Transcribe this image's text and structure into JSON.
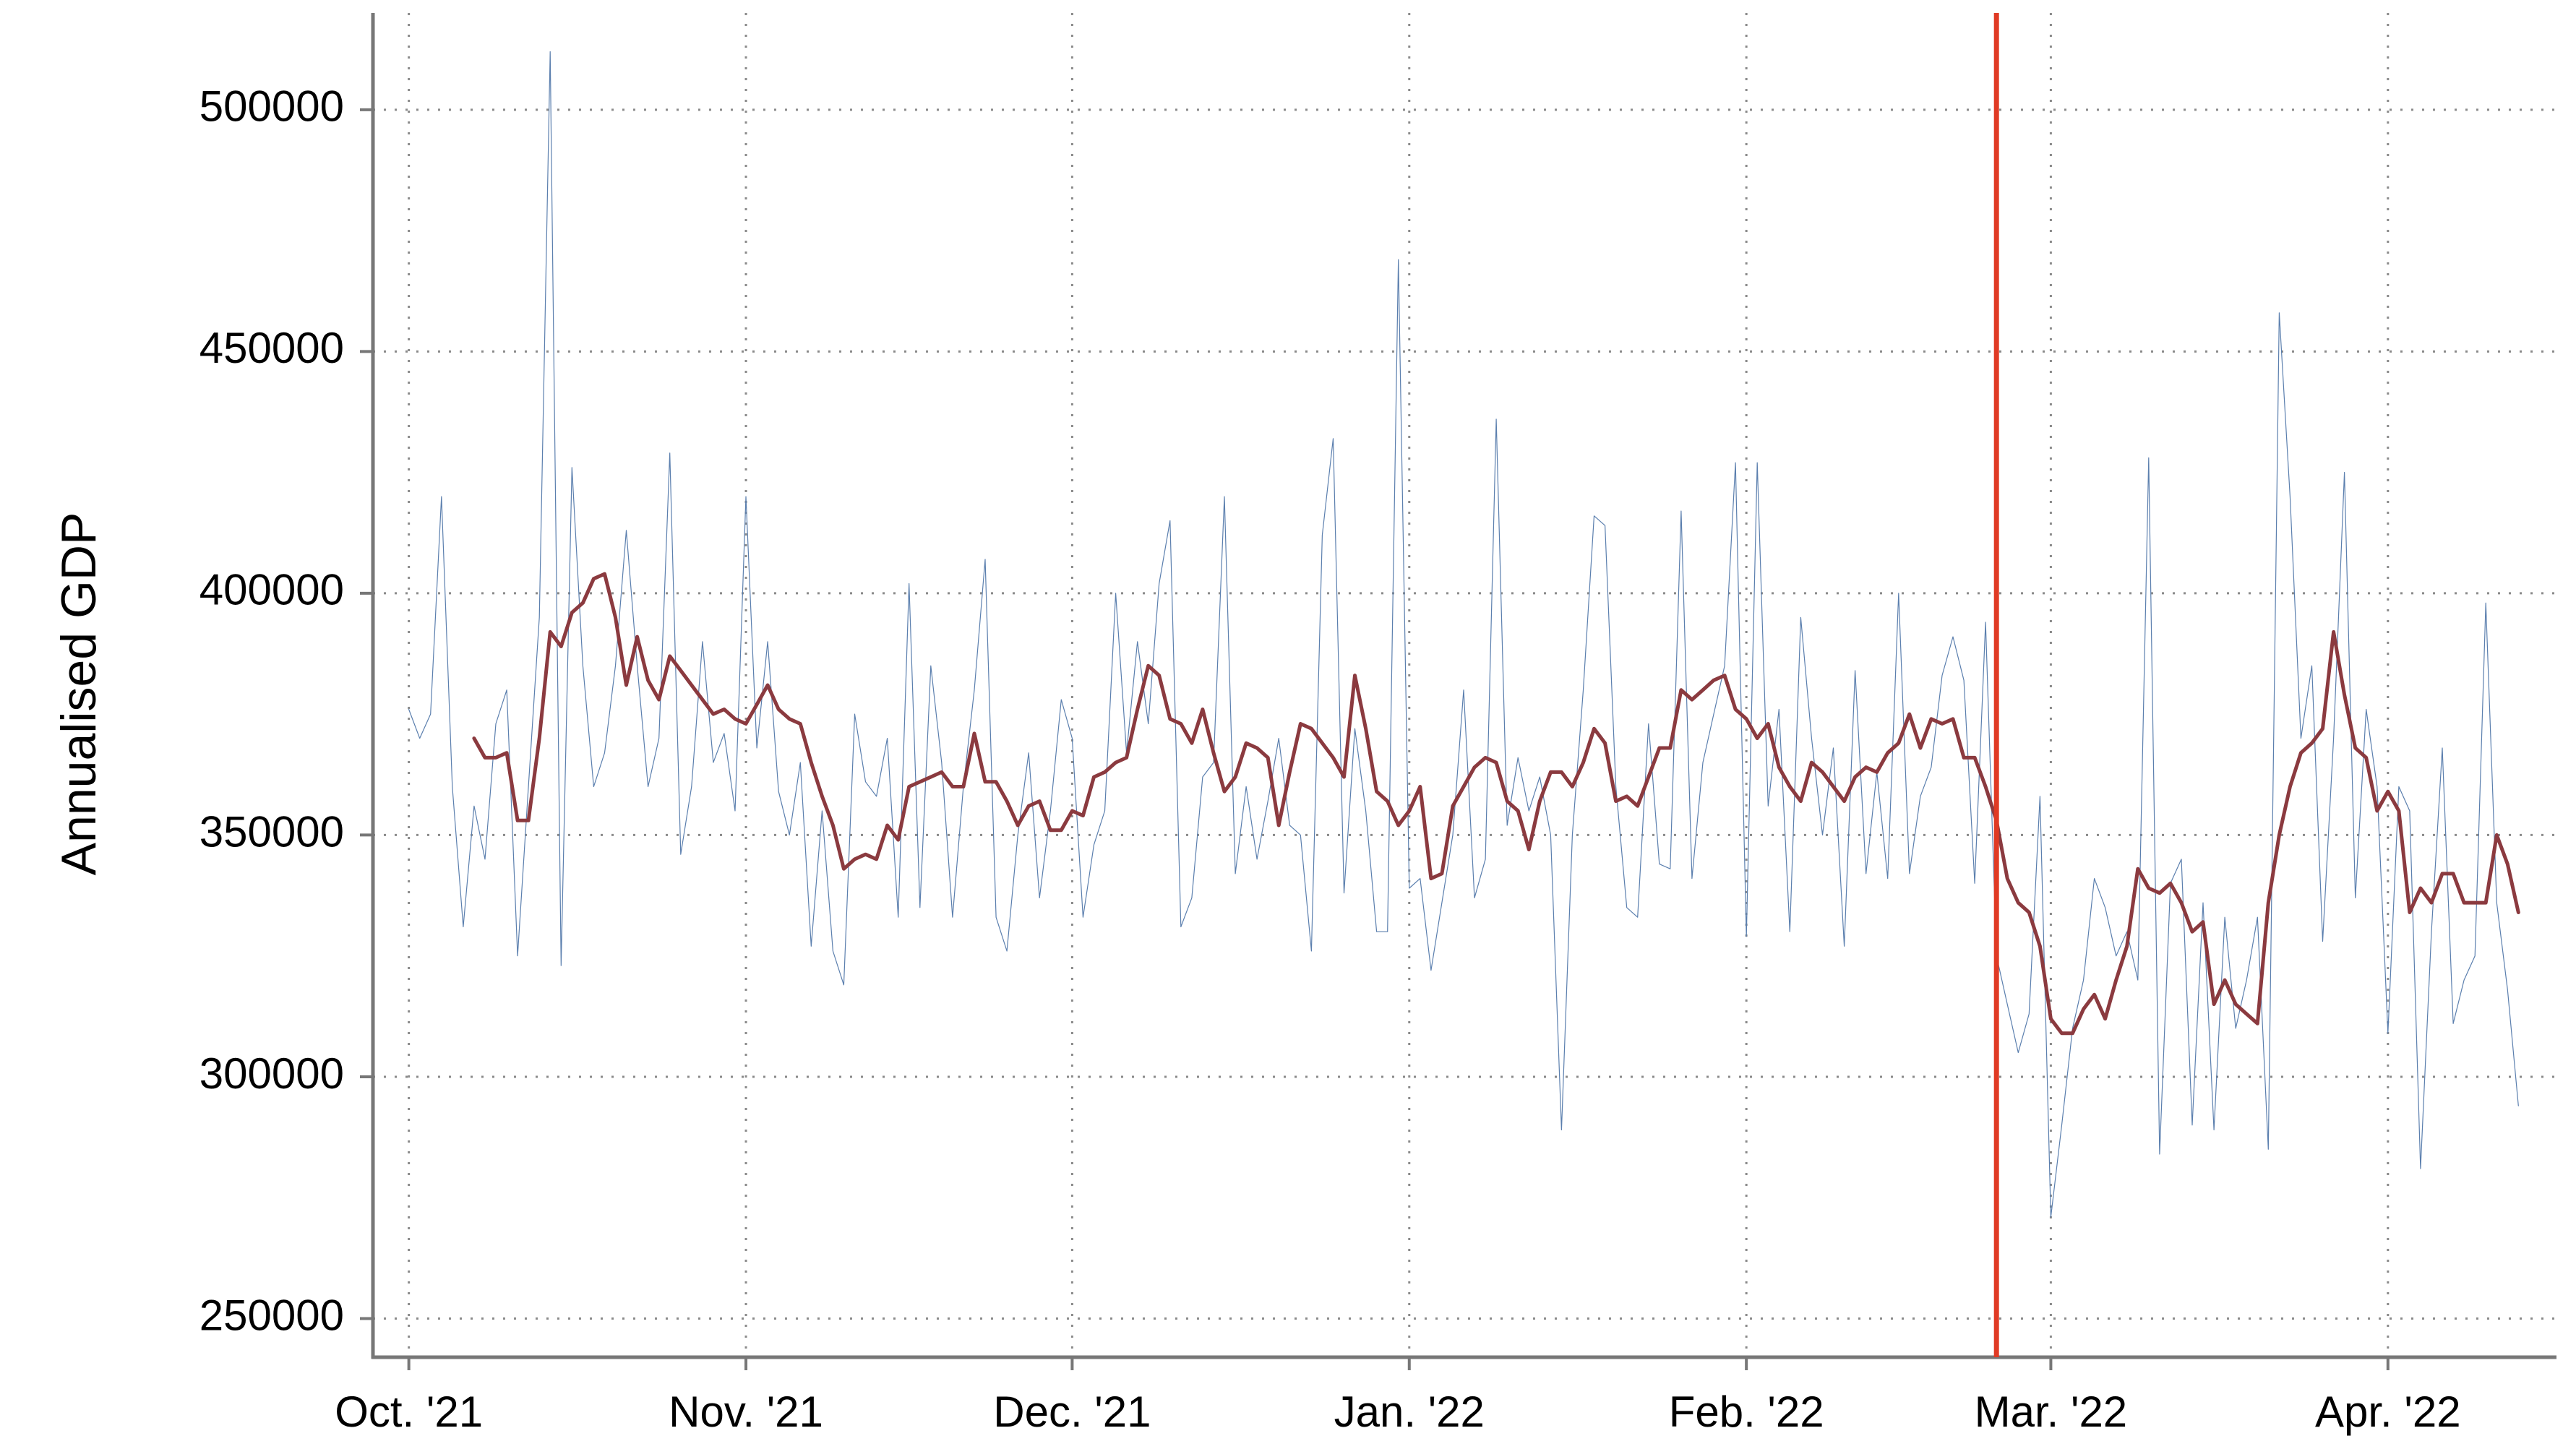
{
  "chart_data": {
    "type": "line",
    "y_label": "Annualised GDP",
    "x": [
      0,
      1,
      2,
      3,
      4,
      5,
      6,
      7,
      8,
      9,
      10,
      11,
      12,
      13,
      14,
      15,
      16,
      17,
      18,
      19,
      20,
      21,
      22,
      23,
      24,
      25,
      26,
      27,
      28,
      29,
      30,
      31,
      32,
      33,
      34,
      35,
      36,
      37,
      38,
      39,
      40,
      41,
      42,
      43,
      44,
      45,
      46,
      47,
      48,
      49,
      50,
      51,
      52,
      53,
      54,
      55,
      56,
      57,
      58,
      59,
      60,
      61,
      62,
      63,
      64,
      65,
      66,
      67,
      68,
      69,
      70,
      71,
      72,
      73,
      74,
      75,
      76,
      77,
      78,
      79,
      80,
      81,
      82,
      83,
      84,
      85,
      86,
      87,
      88,
      89,
      90,
      91,
      92,
      93,
      94,
      95,
      96,
      97,
      98,
      99,
      100,
      101,
      102,
      103,
      104,
      105,
      106,
      107,
      108,
      109,
      110,
      111,
      112,
      113,
      114,
      115,
      116,
      117,
      118,
      119,
      120,
      121,
      122,
      123,
      124,
      125,
      126,
      127,
      128,
      129,
      130,
      131,
      132,
      133,
      134,
      135,
      136,
      137,
      138,
      139,
      140,
      141,
      142,
      143,
      144,
      145,
      146,
      147,
      148,
      149,
      150,
      151,
      152,
      153,
      154,
      155,
      156,
      157,
      158,
      159,
      160,
      161,
      162,
      163,
      164,
      165,
      166,
      167,
      168,
      169,
      170,
      171,
      172,
      173,
      174,
      175,
      176,
      177,
      178,
      179,
      180,
      181,
      182,
      183,
      184,
      185,
      186,
      187,
      188,
      189,
      190,
      191,
      192,
      193,
      194
    ],
    "series": [
      {
        "color": "#5b7fae",
        "width": 1.2,
        "values": [
          376000,
          370000,
          375000,
          420000,
          360000,
          331000,
          356000,
          345000,
          373000,
          380000,
          325000,
          360000,
          395000,
          512000,
          323000,
          426000,
          385000,
          360000,
          367000,
          385000,
          413000,
          385000,
          360000,
          370000,
          429000,
          346000,
          360000,
          390000,
          365000,
          371000,
          355000,
          420000,
          368000,
          390000,
          359000,
          350000,
          365000,
          327000,
          355000,
          326000,
          319000,
          375000,
          361000,
          358000,
          370000,
          333000,
          402000,
          335000,
          385000,
          365000,
          333000,
          360000,
          380000,
          407000,
          333000,
          326000,
          350000,
          367000,
          337000,
          355000,
          378000,
          370000,
          333000,
          348000,
          355000,
          400000,
          367000,
          390000,
          373000,
          402000,
          415000,
          331000,
          337000,
          362000,
          365000,
          420000,
          342000,
          360000,
          345000,
          357000,
          370000,
          352000,
          350000,
          326000,
          412000,
          432000,
          338000,
          372000,
          355000,
          330000,
          330000,
          469000,
          339000,
          341000,
          322000,
          336000,
          350000,
          380000,
          337000,
          345000,
          436000,
          352000,
          366000,
          355000,
          362000,
          350000,
          289000,
          350000,
          380000,
          416000,
          414000,
          360000,
          335000,
          333000,
          373000,
          344000,
          343000,
          417000,
          341000,
          365000,
          375000,
          385000,
          427000,
          329000,
          427000,
          356000,
          376000,
          330000,
          395000,
          370000,
          350000,
          368000,
          327000,
          384000,
          342000,
          363000,
          341000,
          400000,
          342000,
          358000,
          364000,
          383000,
          391000,
          382000,
          340000,
          394000,
          325000,
          315000,
          305000,
          313000,
          358000,
          271000,
          290000,
          310000,
          320000,
          341000,
          335000,
          325000,
          330000,
          320000,
          428000,
          284000,
          340000,
          345000,
          290000,
          336000,
          289000,
          333000,
          310000,
          320000,
          333000,
          285000,
          458000,
          420000,
          370000,
          385000,
          328000,
          370000,
          425000,
          337000,
          376000,
          360000,
          309000,
          360000,
          355000,
          281000,
          330000,
          368000,
          311000,
          320000,
          325000,
          398000,
          336000,
          318000,
          294000
        ]
      },
      {
        "color": "#8b3a3f",
        "width": 5,
        "values": [
          null,
          null,
          null,
          null,
          null,
          null,
          370000,
          366000,
          366000,
          367000,
          353000,
          353000,
          370000,
          392000,
          389000,
          396000,
          398000,
          403000,
          404000,
          395000,
          381000,
          391000,
          382000,
          378000,
          387000,
          384000,
          381000,
          378000,
          375000,
          376000,
          374000,
          373000,
          377000,
          381000,
          376000,
          374000,
          373000,
          365000,
          358000,
          352000,
          343000,
          345000,
          346000,
          345000,
          352000,
          349000,
          360000,
          361000,
          362000,
          363000,
          360000,
          360000,
          371000,
          361000,
          361000,
          357000,
          352000,
          356000,
          357000,
          351000,
          351000,
          355000,
          354000,
          362000,
          363000,
          365000,
          366000,
          376000,
          385000,
          383000,
          374000,
          373000,
          369000,
          376000,
          367000,
          359000,
          362000,
          369000,
          368000,
          366000,
          352000,
          363000,
          373000,
          372000,
          369000,
          366000,
          362000,
          383000,
          372000,
          359000,
          357000,
          352000,
          355000,
          360000,
          341000,
          342000,
          356000,
          360000,
          364000,
          366000,
          365000,
          357000,
          355000,
          347000,
          357000,
          363000,
          363000,
          360000,
          365000,
          372000,
          369000,
          357000,
          358000,
          356000,
          362000,
          368000,
          368000,
          380000,
          378000,
          380000,
          382000,
          383000,
          376000,
          374000,
          370000,
          373000,
          364000,
          360000,
          357000,
          365000,
          363000,
          360000,
          357000,
          362000,
          364000,
          363000,
          367000,
          369000,
          375000,
          368000,
          374000,
          373000,
          374000,
          366000,
          366000,
          360000,
          353000,
          341000,
          336000,
          334000,
          327000,
          312000,
          309000,
          309000,
          314000,
          317000,
          312000,
          320000,
          327000,
          343000,
          339000,
          338000,
          340000,
          336000,
          330000,
          332000,
          315000,
          320000,
          315000,
          313000,
          311000,
          336000,
          350000,
          360000,
          367000,
          369000,
          372000,
          392000,
          379000,
          368000,
          366000,
          355000,
          359000,
          355000,
          334000,
          339000,
          336000,
          342000,
          342000,
          336000,
          336000,
          336000,
          350000,
          344000,
          334000
        ]
      }
    ],
    "vline": {
      "x": 146,
      "color": "#e03a24"
    },
    "xlim": [
      -3.3,
      197.5
    ],
    "xticks": [
      {
        "value": 0,
        "label": "Oct. '21"
      },
      {
        "value": 31,
        "label": "Nov. '21"
      },
      {
        "value": 61,
        "label": "Dec. '21"
      },
      {
        "value": 92,
        "label": "Jan. '22"
      },
      {
        "value": 123,
        "label": "Feb. '22"
      },
      {
        "value": 151,
        "label": "Mar. '22"
      },
      {
        "value": 182,
        "label": "Apr. '22"
      }
    ],
    "ylim": [
      242000,
      520000
    ],
    "yticks": [
      250000,
      300000,
      350000,
      400000,
      450000,
      500000
    ],
    "grid": true
  }
}
